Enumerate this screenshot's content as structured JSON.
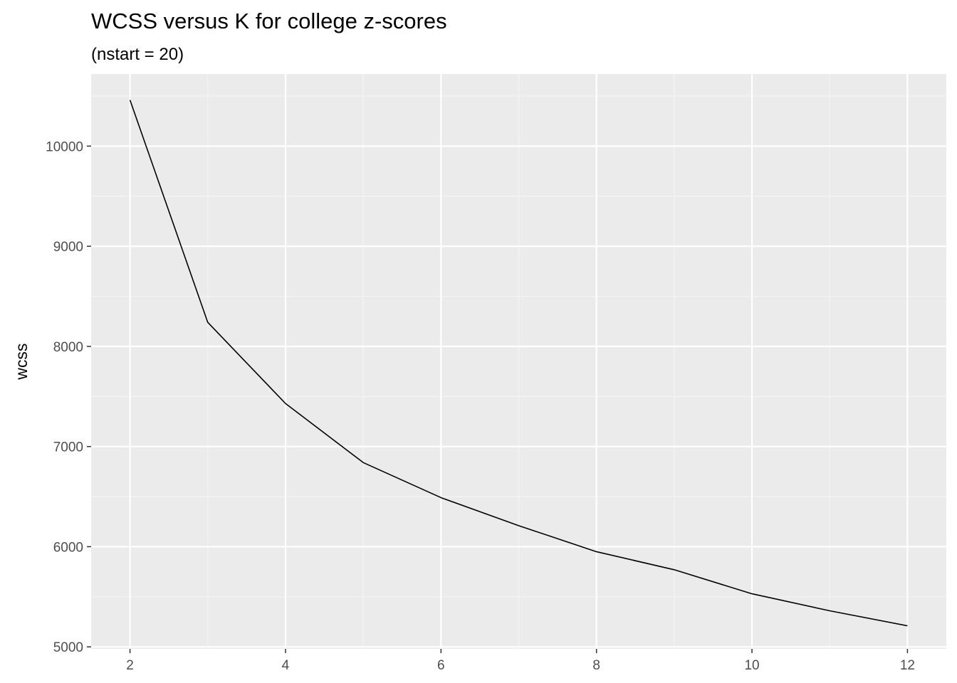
{
  "chart_data": {
    "type": "line",
    "title": "WCSS versus K for college z-scores",
    "subtitle": "(nstart = 20)",
    "xlabel": "",
    "ylabel": "wcss",
    "x": [
      2,
      3,
      4,
      5,
      6,
      7,
      8,
      9,
      10,
      11,
      12
    ],
    "values": [
      10460,
      8240,
      7430,
      6840,
      6490,
      6210,
      5950,
      5770,
      5530,
      5360,
      5210
    ],
    "xlim": [
      1.5,
      12.5
    ],
    "ylim": [
      4980,
      10720
    ],
    "x_ticks": [
      2,
      4,
      6,
      8,
      10,
      12
    ],
    "x_tick_labels": [
      "2",
      "4",
      "6",
      "8",
      "10",
      "12"
    ],
    "y_ticks": [
      5000,
      6000,
      7000,
      8000,
      9000,
      10000
    ],
    "y_tick_labels": [
      "5000",
      "6000",
      "7000",
      "8000",
      "9000",
      "10000"
    ],
    "grid": true,
    "colors": {
      "panel": "#ebebeb",
      "grid_major": "#ffffff",
      "grid_minor": "#f5f5f5",
      "line": "#000000",
      "tick": "#333333"
    }
  }
}
